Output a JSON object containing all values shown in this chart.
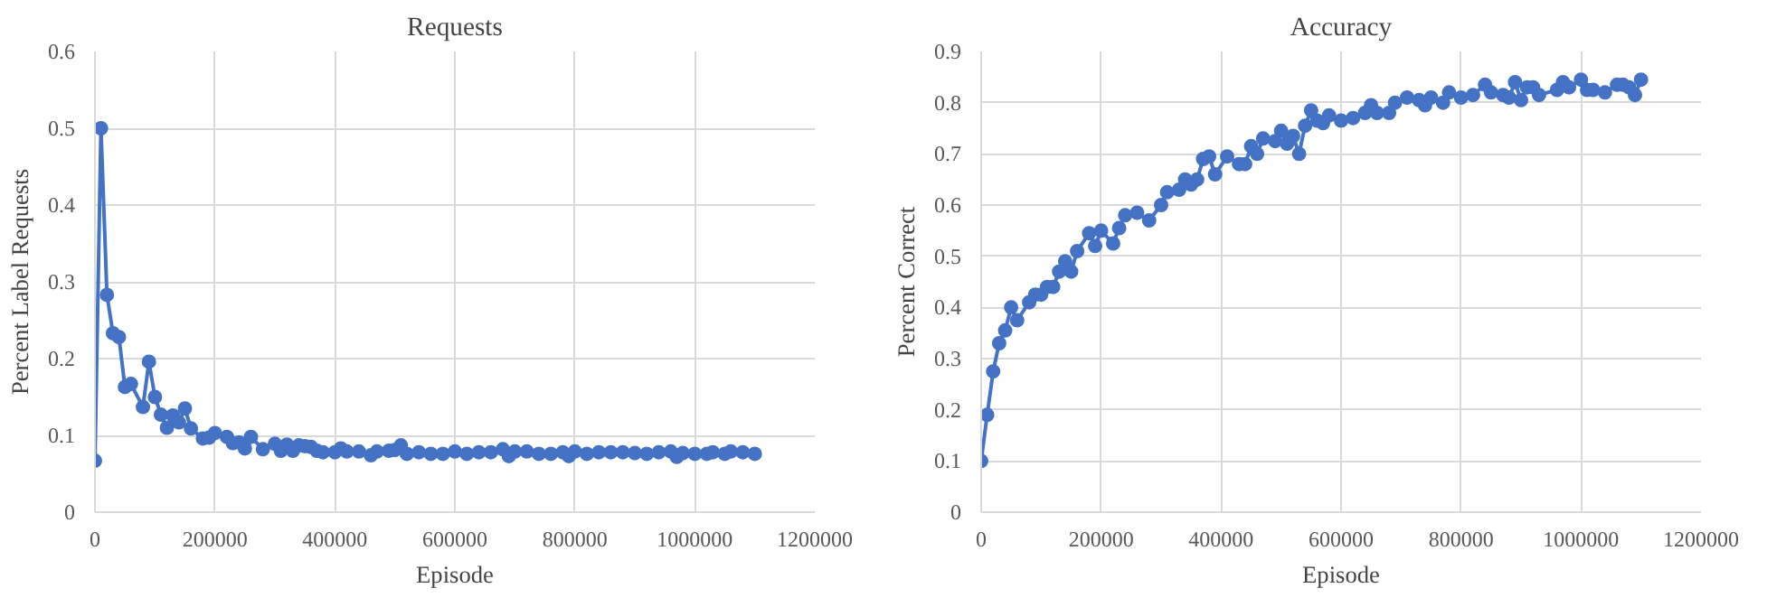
{
  "chart_data": [
    {
      "type": "line",
      "title": "Requests",
      "xlabel": "Episode",
      "ylabel": "Percent Label Requests",
      "xlim": [
        0,
        1200000
      ],
      "ylim": [
        0,
        0.6
      ],
      "xticks": [
        0,
        200000,
        400000,
        600000,
        800000,
        1000000,
        1200000
      ],
      "yticks": [
        0,
        0.1,
        0.2,
        0.3,
        0.4,
        0.5,
        0.6
      ],
      "grid": true,
      "marker": "circle",
      "series": [
        {
          "color": "#4472c4",
          "x": [
            0,
            10000,
            20000,
            30000,
            40000,
            50000,
            60000,
            80000,
            90000,
            100000,
            110000,
            120000,
            130000,
            140000,
            150000,
            160000,
            180000,
            190000,
            200000,
            220000,
            230000,
            240000,
            250000,
            260000,
            280000,
            300000,
            310000,
            320000,
            330000,
            340000,
            350000,
            360000,
            370000,
            380000,
            400000,
            410000,
            420000,
            440000,
            460000,
            470000,
            490000,
            500000,
            510000,
            520000,
            540000,
            560000,
            580000,
            600000,
            620000,
            640000,
            660000,
            680000,
            690000,
            700000,
            720000,
            740000,
            760000,
            780000,
            790000,
            800000,
            820000,
            840000,
            860000,
            880000,
            900000,
            920000,
            940000,
            960000,
            970000,
            980000,
            1000000,
            1020000,
            1030000,
            1050000,
            1060000,
            1080000,
            1100000
          ],
          "values": [
            0.067,
            0.5,
            0.283,
            0.233,
            0.228,
            0.163,
            0.167,
            0.137,
            0.196,
            0.15,
            0.127,
            0.11,
            0.126,
            0.117,
            0.135,
            0.109,
            0.096,
            0.097,
            0.103,
            0.098,
            0.09,
            0.091,
            0.083,
            0.098,
            0.082,
            0.089,
            0.08,
            0.088,
            0.08,
            0.087,
            0.086,
            0.085,
            0.08,
            0.078,
            0.078,
            0.083,
            0.079,
            0.079,
            0.074,
            0.079,
            0.08,
            0.081,
            0.087,
            0.076,
            0.078,
            0.076,
            0.076,
            0.079,
            0.076,
            0.078,
            0.078,
            0.082,
            0.073,
            0.079,
            0.079,
            0.076,
            0.076,
            0.078,
            0.073,
            0.079,
            0.076,
            0.078,
            0.078,
            0.078,
            0.077,
            0.076,
            0.078,
            0.079,
            0.072,
            0.077,
            0.076,
            0.076,
            0.078,
            0.076,
            0.079,
            0.078,
            0.076
          ]
        }
      ]
    },
    {
      "type": "line",
      "title": "Accuracy",
      "xlabel": "Episode",
      "ylabel": "Percent Correct",
      "xlim": [
        0,
        1200000
      ],
      "ylim": [
        0,
        0.9
      ],
      "xticks": [
        0,
        200000,
        400000,
        600000,
        800000,
        1000000,
        1200000
      ],
      "yticks": [
        0,
        0.1,
        0.2,
        0.3,
        0.4,
        0.5,
        0.6,
        0.7,
        0.8,
        0.9
      ],
      "grid": true,
      "marker": "circle",
      "series": [
        {
          "color": "#4472c4",
          "x": [
            0,
            10000,
            20000,
            30000,
            40000,
            50000,
            60000,
            80000,
            90000,
            100000,
            110000,
            120000,
            130000,
            140000,
            150000,
            160000,
            180000,
            190000,
            200000,
            220000,
            230000,
            240000,
            260000,
            280000,
            300000,
            310000,
            330000,
            340000,
            350000,
            360000,
            370000,
            380000,
            390000,
            410000,
            430000,
            440000,
            450000,
            460000,
            470000,
            490000,
            500000,
            510000,
            520000,
            530000,
            540000,
            550000,
            560000,
            570000,
            580000,
            600000,
            620000,
            640000,
            650000,
            660000,
            680000,
            690000,
            710000,
            730000,
            740000,
            750000,
            770000,
            780000,
            800000,
            820000,
            840000,
            850000,
            870000,
            880000,
            890000,
            900000,
            910000,
            920000,
            930000,
            960000,
            970000,
            980000,
            1000000,
            1010000,
            1020000,
            1040000,
            1060000,
            1070000,
            1080000,
            1090000,
            1100000
          ],
          "values": [
            0.1,
            0.19,
            0.275,
            0.33,
            0.355,
            0.4,
            0.375,
            0.41,
            0.425,
            0.425,
            0.44,
            0.44,
            0.47,
            0.49,
            0.47,
            0.51,
            0.545,
            0.52,
            0.55,
            0.525,
            0.555,
            0.58,
            0.585,
            0.57,
            0.6,
            0.625,
            0.63,
            0.65,
            0.64,
            0.65,
            0.69,
            0.695,
            0.66,
            0.695,
            0.68,
            0.68,
            0.715,
            0.7,
            0.73,
            0.725,
            0.745,
            0.72,
            0.735,
            0.7,
            0.755,
            0.785,
            0.765,
            0.76,
            0.775,
            0.765,
            0.77,
            0.78,
            0.795,
            0.78,
            0.78,
            0.8,
            0.81,
            0.805,
            0.795,
            0.81,
            0.8,
            0.82,
            0.81,
            0.815,
            0.835,
            0.82,
            0.815,
            0.81,
            0.84,
            0.805,
            0.83,
            0.83,
            0.815,
            0.825,
            0.84,
            0.83,
            0.845,
            0.825,
            0.825,
            0.82,
            0.835,
            0.835,
            0.83,
            0.815,
            0.845
          ]
        }
      ]
    }
  ]
}
